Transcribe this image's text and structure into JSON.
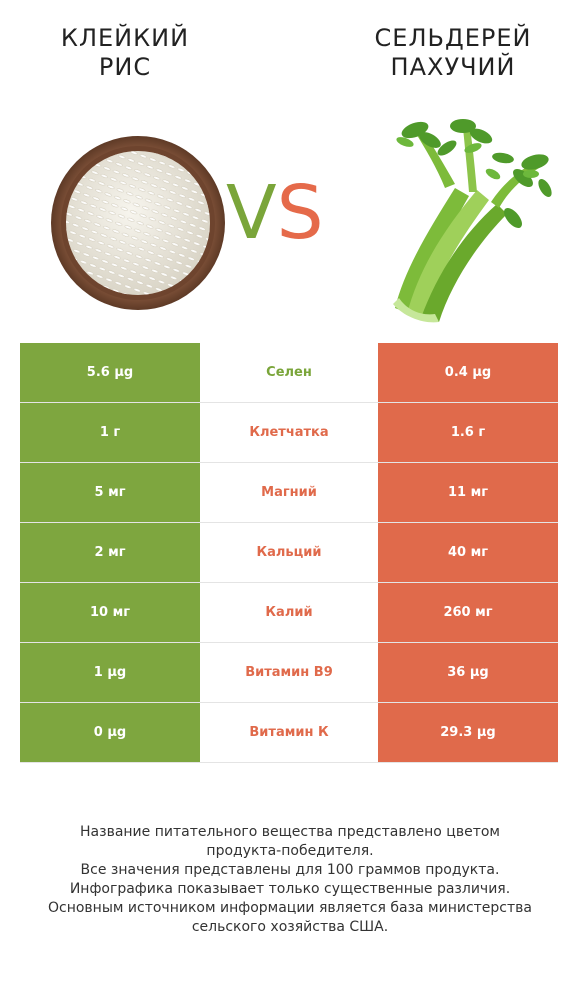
{
  "left_product": {
    "title_line1": "КЛЕЙКИЙ",
    "title_line2": "РИС",
    "color": "#7ea63f"
  },
  "right_product": {
    "title_line1": "СЕЛЬДЕРЕЙ",
    "title_line2": "ПАХУЧИЙ",
    "color": "#e06a4b"
  },
  "vs": {
    "v": "V",
    "s": "S"
  },
  "rows": [
    {
      "left": "5.6 µg",
      "name": "Селен",
      "right": "0.4 µg",
      "winner": "left"
    },
    {
      "left": "1 г",
      "name": "Клетчатка",
      "right": "1.6 г",
      "winner": "right"
    },
    {
      "left": "5 мг",
      "name": "Магний",
      "right": "11 мг",
      "winner": "right"
    },
    {
      "left": "2 мг",
      "name": "Кальций",
      "right": "40 мг",
      "winner": "right"
    },
    {
      "left": "10 мг",
      "name": "Калий",
      "right": "260 мг",
      "winner": "right"
    },
    {
      "left": "1 µg",
      "name": "Витамин B9",
      "right": "36 µg",
      "winner": "right"
    },
    {
      "left": "0 µg",
      "name": "Витамин К",
      "right": "29.3 µg",
      "winner": "right"
    }
  ],
  "footer": {
    "line1": "Название питательного вещества представлено цветом",
    "line2": "продукта-победителя.",
    "line3": "Все значения представлены для 100 граммов продукта.",
    "line4": "Инфографика показывает только существенные различия.",
    "line5": "Основным источником информации является база министерства",
    "line6": "сельского хозяйства США."
  }
}
